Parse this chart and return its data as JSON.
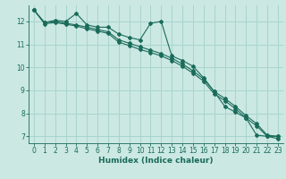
{
  "title": "",
  "xlabel": "Humidex (Indice chaleur)",
  "background_color": "#cbe8e3",
  "grid_color": "#a8d4ce",
  "line_color": "#1a6b5a",
  "xlim": [
    -0.5,
    23.5
  ],
  "ylim": [
    6.7,
    12.7
  ],
  "yticks": [
    7,
    8,
    9,
    10,
    11,
    12
  ],
  "xticks": [
    0,
    1,
    2,
    3,
    4,
    5,
    6,
    7,
    8,
    9,
    10,
    11,
    12,
    13,
    14,
    15,
    16,
    17,
    18,
    19,
    20,
    21,
    22,
    23
  ],
  "line1_x": [
    0,
    1,
    2,
    3,
    4,
    5,
    6,
    7,
    8,
    9,
    10,
    11,
    12,
    13,
    14,
    15,
    16,
    17,
    18,
    19,
    20,
    21,
    22,
    23
  ],
  "line1_y": [
    12.5,
    11.95,
    12.05,
    12.0,
    12.35,
    11.85,
    11.75,
    11.75,
    11.45,
    11.3,
    11.2,
    11.92,
    12.0,
    10.5,
    10.3,
    10.05,
    9.55,
    8.95,
    8.3,
    8.05,
    7.8,
    7.05,
    7.0,
    7.0
  ],
  "line2_x": [
    0,
    1,
    2,
    3,
    4,
    5,
    6,
    7,
    8,
    9,
    10,
    11,
    12,
    13,
    14,
    15,
    16,
    17,
    18,
    19,
    20,
    21,
    22,
    23
  ],
  "line2_y": [
    12.5,
    11.95,
    12.0,
    11.92,
    11.85,
    11.75,
    11.65,
    11.55,
    11.2,
    11.05,
    10.9,
    10.75,
    10.6,
    10.4,
    10.15,
    9.85,
    9.5,
    8.95,
    8.65,
    8.3,
    7.9,
    7.55,
    7.05,
    7.0
  ],
  "line3_x": [
    0,
    1,
    2,
    3,
    4,
    5,
    6,
    7,
    8,
    9,
    10,
    11,
    12,
    13,
    14,
    15,
    16,
    17,
    18,
    19,
    20,
    21,
    22,
    23
  ],
  "line3_y": [
    12.5,
    11.9,
    11.95,
    11.88,
    11.8,
    11.68,
    11.58,
    11.48,
    11.1,
    10.95,
    10.78,
    10.65,
    10.5,
    10.3,
    10.05,
    9.75,
    9.4,
    8.85,
    8.55,
    8.2,
    7.8,
    7.45,
    7.0,
    6.9
  ]
}
